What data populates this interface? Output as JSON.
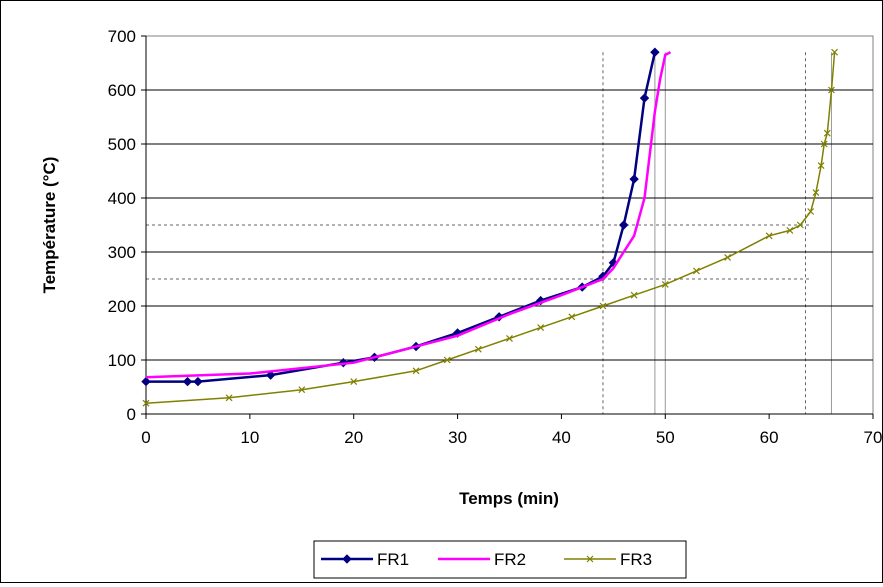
{
  "chart_data": {
    "type": "line",
    "xlabel": "Temps (min)",
    "ylabel": "Température (°C)",
    "xlim": [
      0,
      70
    ],
    "ylim": [
      0,
      700
    ],
    "xticks": [
      0,
      10,
      20,
      30,
      40,
      50,
      60,
      70
    ],
    "yticks": [
      0,
      100,
      200,
      300,
      400,
      500,
      600,
      700
    ],
    "grid": "horizontal",
    "legend_position": "bottom",
    "series": [
      {
        "name": "FR1",
        "color": "#000080",
        "marker": "diamond",
        "x": [
          0,
          4,
          5,
          12,
          19,
          22,
          26,
          30,
          34,
          38,
          42,
          44,
          45,
          46,
          47,
          48,
          49
        ],
        "y": [
          60,
          60,
          60,
          72,
          95,
          105,
          125,
          150,
          180,
          210,
          235,
          255,
          280,
          350,
          435,
          585,
          670
        ]
      },
      {
        "name": "FR2",
        "color": "#ff00ff",
        "marker": "none",
        "x": [
          0,
          10,
          20,
          30,
          35,
          40,
          44,
          45,
          46,
          47,
          48,
          48.5,
          49,
          49.5,
          50,
          50.5
        ],
        "y": [
          68,
          75,
          95,
          145,
          185,
          220,
          250,
          270,
          300,
          330,
          400,
          480,
          560,
          620,
          665,
          670
        ]
      },
      {
        "name": "FR3",
        "color": "#808000",
        "marker": "x",
        "x": [
          0,
          8,
          15,
          20,
          26,
          29,
          32,
          35,
          38,
          41,
          44,
          47,
          50,
          53,
          56,
          60,
          62,
          63,
          64,
          64.5,
          65,
          65.3,
          65.6,
          66,
          66.3
        ],
        "y": [
          20,
          30,
          45,
          60,
          80,
          100,
          120,
          140,
          160,
          180,
          200,
          220,
          240,
          265,
          290,
          330,
          340,
          350,
          375,
          410,
          460,
          500,
          520,
          600,
          670
        ]
      }
    ],
    "reference_lines": {
      "horizontal": [
        250,
        350
      ],
      "vertical": [
        44,
        49,
        50,
        63.5,
        66
      ]
    }
  }
}
